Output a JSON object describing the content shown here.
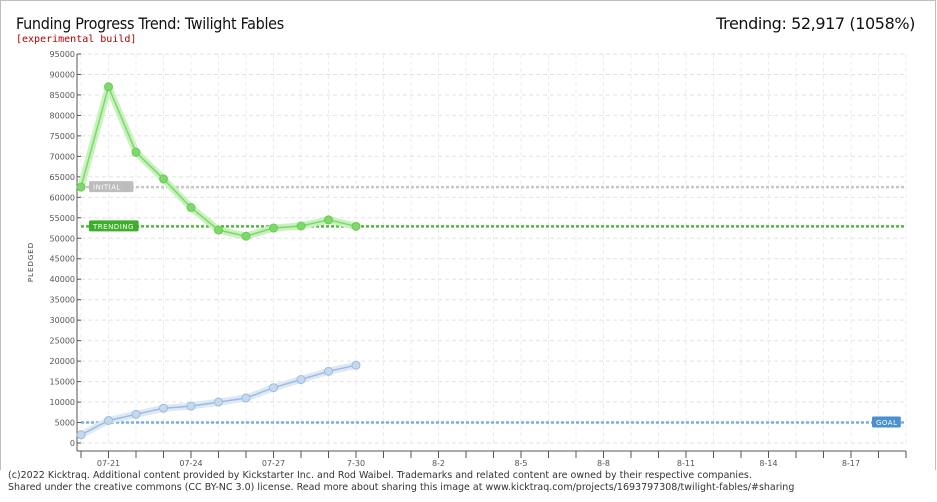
{
  "header": {
    "title": "Funding Progress Trend: Twilight Fables",
    "subtitle": "[experimental build]",
    "trending": "Trending:  52,917 (1058%)"
  },
  "footer": {
    "line1": "(c)2022 Kicktraq. Additional content provided by Kickstarter Inc. and Rod Waibel. Trademarks and related content are owned by their respective companies.",
    "line2": "Shared under the creative commons (CC BY-NC 3.0) license. Read more about sharing this image at www.kicktraq.com/projects/1693797308/twilight-fables/#sharing"
  },
  "chart_data": {
    "type": "line",
    "ylabel": "PLEDGED",
    "ylim": [
      0,
      95000
    ],
    "yticks": [
      0,
      5000,
      10000,
      15000,
      20000,
      25000,
      30000,
      35000,
      40000,
      45000,
      50000,
      55000,
      60000,
      65000,
      70000,
      75000,
      80000,
      85000,
      90000,
      95000
    ],
    "x_tick_labels": [
      "07-21",
      "07-24",
      "07-27",
      "7-30",
      "8-2",
      "8-5",
      "8-8",
      "8-11",
      "8-14",
      "8-17"
    ],
    "x_days": 30,
    "x_label_days": [
      1,
      4,
      7,
      10,
      13,
      16,
      19,
      22,
      25,
      28
    ],
    "grid": true,
    "colors": {
      "trend": "#7ed86a",
      "trend_band": "#c6f2bb",
      "pledged": "#c5d9ee",
      "pledged_stroke": "#9cbbe0",
      "initial": "#c8c8c8",
      "trending_line": "#4cbb3c",
      "goal": "#7aaee0"
    },
    "series": [
      {
        "key": "trend",
        "values": [
          62500,
          87000,
          71000,
          64500,
          57500,
          52000,
          50500,
          52500,
          53000,
          54500,
          52917
        ]
      },
      {
        "key": "pledged",
        "values": [
          2000,
          5500,
          7000,
          8500,
          9000,
          10000,
          11000,
          13500,
          15500,
          17500,
          19000
        ]
      }
    ],
    "reference_lines": [
      {
        "key": "initial",
        "label": "INITIAL",
        "value": 62500
      },
      {
        "key": "trending",
        "label": "TRENDING",
        "value": 52917
      },
      {
        "key": "goal",
        "label": "GOAL",
        "value": 5000
      }
    ]
  }
}
